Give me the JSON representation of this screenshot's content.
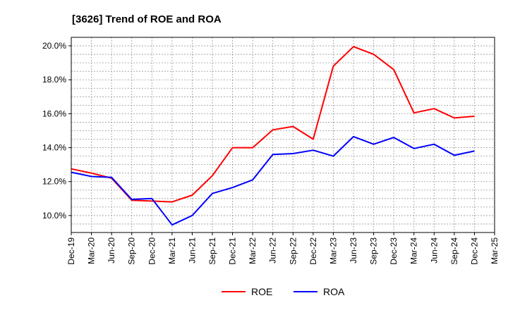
{
  "chart_data": {
    "type": "line",
    "title": "[3626]  Trend of ROE and ROA",
    "xlabel": "",
    "ylabel": "",
    "x": [
      "Dec-19",
      "Mar-20",
      "Jun-20",
      "Sep-20",
      "Dec-20",
      "Mar-21",
      "Jun-21",
      "Sep-21",
      "Dec-21",
      "Mar-22",
      "Jun-22",
      "Sep-22",
      "Dec-22",
      "Mar-23",
      "Jun-23",
      "Sep-23",
      "Dec-23",
      "Mar-24",
      "Jun-24",
      "Sep-24",
      "Dec-24",
      "Mar-25"
    ],
    "y_ticks": [
      "10.0%",
      "12.0%",
      "14.0%",
      "16.0%",
      "18.0%",
      "20.0%"
    ],
    "ylim": [
      9.0,
      20.5
    ],
    "grid": true,
    "legend_position": "bottom",
    "series": [
      {
        "name": "ROE",
        "color": "#ff0000",
        "values": [
          12.75,
          12.5,
          12.2,
          10.9,
          10.85,
          10.8,
          11.2,
          12.35,
          14.0,
          14.0,
          15.05,
          15.25,
          14.5,
          18.8,
          19.95,
          19.5,
          18.6,
          16.05,
          16.3,
          15.75,
          15.85,
          null
        ]
      },
      {
        "name": "ROA",
        "color": "#0000ff",
        "values": [
          12.55,
          12.3,
          12.25,
          10.95,
          11.0,
          9.45,
          10.0,
          11.3,
          11.65,
          12.1,
          13.6,
          13.65,
          13.85,
          13.5,
          14.65,
          14.2,
          14.6,
          13.95,
          14.2,
          13.55,
          13.8,
          null
        ]
      }
    ]
  }
}
